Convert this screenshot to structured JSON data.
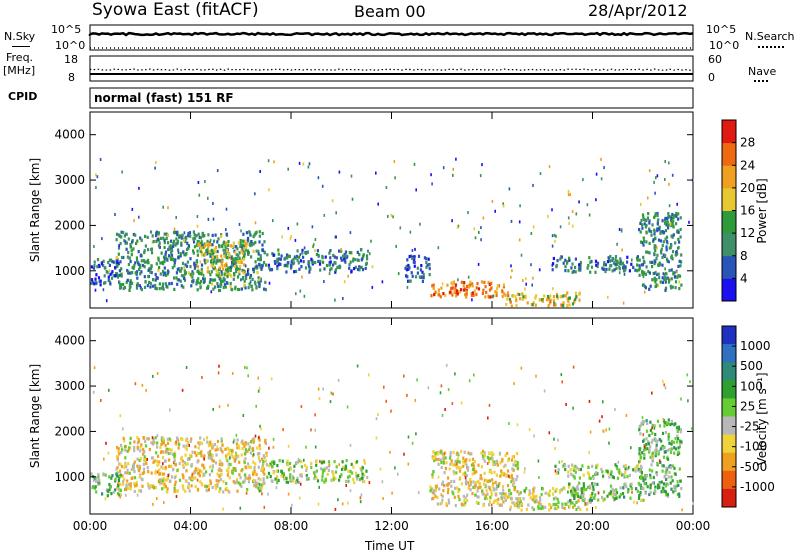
{
  "header": {
    "station": "Syowa East (fitACF)",
    "beam": "Beam 00",
    "date": "28/Apr/2012"
  },
  "params": {
    "nsky_label": "N.Sky",
    "nsearch_label": "N.Search",
    "nsky_ticks": [
      "10^5",
      "10^0"
    ],
    "nsearch_ticks": [
      "10^5",
      "10^0"
    ],
    "freq_label": [
      "Freq.",
      "[MHz]"
    ],
    "freq_ticks": [
      "18",
      "8"
    ],
    "nave_label": "Nave",
    "nave_ticks": [
      "60",
      "0"
    ],
    "cpid_label": "CPID",
    "cpid_value": "normal (fast) 151 RF"
  },
  "colors": {
    "power_scale": [
      "#1a10f0",
      "#2a55b8",
      "#3f8f6a",
      "#2f9a3a",
      "#e8c832",
      "#f0a020",
      "#ee6a10",
      "#e01a10"
    ],
    "velocity_scale": [
      "#2030c0",
      "#3070c0",
      "#308a78",
      "#2fa030",
      "#66cc33",
      "#b8b8b8",
      "#f0d23a",
      "#f0a020",
      "#ee6010",
      "#d82010"
    ]
  },
  "chart_data": [
    {
      "type": "heatmap",
      "title": "",
      "xlabel": "Time UT",
      "ylabel": "Slant Range [km]",
      "x_ticks": [
        "00:00",
        "04:00",
        "08:00",
        "12:00",
        "16:00",
        "20:00",
        "00:00"
      ],
      "y_ticks": [
        1000,
        2000,
        3000,
        4000
      ],
      "x_range_hours": [
        0,
        24
      ],
      "ylim": [
        180,
        4500
      ],
      "colorbar": {
        "label": "Power [dB]",
        "ticks": [
          "28",
          "24",
          "20",
          "16",
          "12",
          "8",
          "4"
        ],
        "range": [
          0,
          30
        ]
      },
      "regions": [
        {
          "t": [
            1.0,
            7.0
          ],
          "r": [
            600,
            1900
          ],
          "v": 10
        },
        {
          "t": [
            4.2,
            6.2
          ],
          "r": [
            900,
            1700
          ],
          "v": 16
        },
        {
          "t": [
            7.0,
            11.0
          ],
          "r": [
            1000,
            1500
          ],
          "v": 8
        },
        {
          "t": [
            0.0,
            1.2
          ],
          "r": [
            700,
            1300
          ],
          "v": 6
        },
        {
          "t": [
            13.5,
            16.5
          ],
          "r": [
            450,
            800
          ],
          "v": 22
        },
        {
          "t": [
            14.0,
            15.2
          ],
          "r": [
            500,
            650
          ],
          "v": 26
        },
        {
          "t": [
            16.5,
            19.5
          ],
          "r": [
            250,
            550
          ],
          "v": 18
        },
        {
          "t": [
            18.3,
            22.0
          ],
          "r": [
            1000,
            1350
          ],
          "v": 8
        },
        {
          "t": [
            21.8,
            23.5
          ],
          "r": [
            600,
            2300
          ],
          "v": 10
        },
        {
          "t": [
            12.5,
            13.5
          ],
          "r": [
            800,
            1400
          ],
          "v": 6
        }
      ]
    },
    {
      "type": "heatmap",
      "title": "",
      "xlabel": "Time UT",
      "ylabel": "Slant Range [km]",
      "x_ticks": [
        "00:00",
        "04:00",
        "08:00",
        "12:00",
        "16:00",
        "20:00",
        "00:00"
      ],
      "y_ticks": [
        1000,
        2000,
        3000,
        4000
      ],
      "x_range_hours": [
        0,
        24
      ],
      "ylim": [
        180,
        4500
      ],
      "colorbar": {
        "label": "Velocity [m s⁻¹]",
        "ticks": [
          "1000",
          "500",
          "100",
          "25",
          "-25",
          "-100",
          "-500",
          "-1000"
        ],
        "range": [
          -1200,
          1200
        ]
      },
      "regions": [
        {
          "t": [
            1.0,
            7.0
          ],
          "r": [
            700,
            1900
          ],
          "v": -300
        },
        {
          "t": [
            7.0,
            11.0
          ],
          "r": [
            900,
            1400
          ],
          "v": 0
        },
        {
          "t": [
            0.0,
            1.2
          ],
          "r": [
            600,
            1100
          ],
          "v": 150
        },
        {
          "t": [
            13.5,
            17.0
          ],
          "r": [
            400,
            1600
          ],
          "v": -300
        },
        {
          "t": [
            16.5,
            20.0
          ],
          "r": [
            300,
            800
          ],
          "v": -150
        },
        {
          "t": [
            18.3,
            22.0
          ],
          "r": [
            1000,
            1300
          ],
          "v": 0
        },
        {
          "t": [
            21.8,
            23.5
          ],
          "r": [
            600,
            2300
          ],
          "v": 200
        },
        {
          "t": [
            19.0,
            22.0
          ],
          "r": [
            500,
            900
          ],
          "v": 120
        }
      ]
    }
  ]
}
